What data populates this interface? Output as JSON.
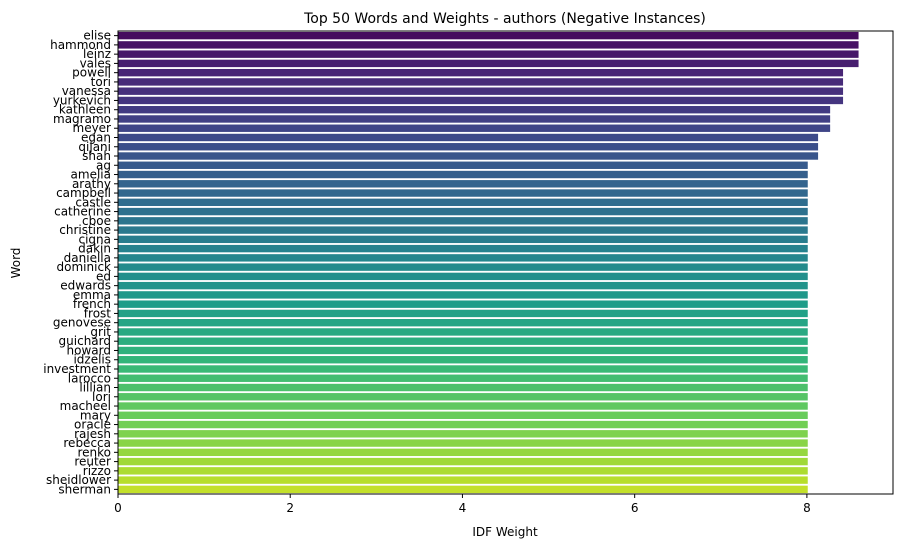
{
  "chart_data": {
    "type": "bar",
    "orientation": "horizontal",
    "title": "Top 50 Words and Weights - authors (Negative Instances)",
    "xlabel": "IDF Weight",
    "ylabel": "Word",
    "xlim": [
      0,
      9.0
    ],
    "xticks": [
      0,
      2,
      4,
      6,
      8
    ],
    "grid": false,
    "colormap": "viridis",
    "categories": [
      "elise",
      "hammond",
      "leinz",
      "vales",
      "powell",
      "tori",
      "vanessa",
      "yurkevich",
      "kathleen",
      "magramo",
      "meyer",
      "egan",
      "qijani",
      "shah",
      "ag",
      "amelia",
      "arathy",
      "campbell",
      "castle",
      "catherine",
      "cboe",
      "christine",
      "cigna",
      "dakin",
      "daniella",
      "dominick",
      "ed",
      "edwards",
      "emma",
      "french",
      "frost",
      "genovese",
      "grit",
      "guichard",
      "howard",
      "idzelis",
      "investment",
      "larocco",
      "lillian",
      "lori",
      "macheel",
      "mary",
      "oracle",
      "rajesh",
      "rebecca",
      "renko",
      "reuter",
      "rizzo",
      "sheidlower",
      "sherman"
    ],
    "values": [
      8.6,
      8.6,
      8.6,
      8.6,
      8.42,
      8.42,
      8.42,
      8.42,
      8.27,
      8.27,
      8.27,
      8.13,
      8.13,
      8.13,
      8.01,
      8.01,
      8.01,
      8.01,
      8.01,
      8.01,
      8.01,
      8.01,
      8.01,
      8.01,
      8.01,
      8.01,
      8.01,
      8.01,
      8.01,
      8.01,
      8.01,
      8.01,
      8.01,
      8.01,
      8.01,
      8.01,
      8.01,
      8.01,
      8.01,
      8.01,
      8.01,
      8.01,
      8.01,
      8.01,
      8.01,
      8.01,
      8.01,
      8.01,
      8.01,
      8.01
    ]
  }
}
